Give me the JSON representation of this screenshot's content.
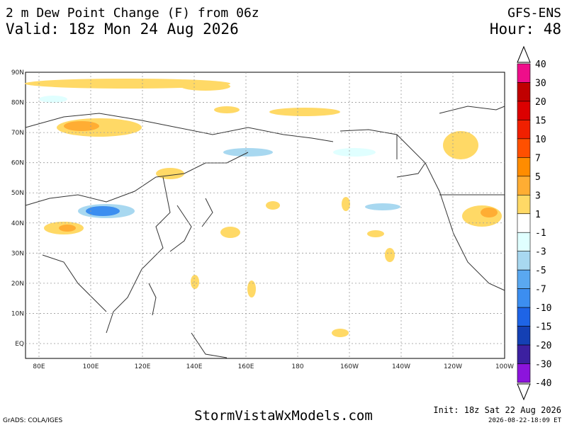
{
  "header": {
    "title": "2 m Dew Point Change (F) from 06z",
    "valid": "Valid: 18z Mon 24 Aug 2026",
    "model": "GFS-ENS",
    "hour": "Hour: 48"
  },
  "map": {
    "lat_labels": [
      "90N",
      "80N",
      "70N",
      "60N",
      "50N",
      "40N",
      "30N",
      "20N",
      "10N",
      "EQ"
    ],
    "lon_labels": [
      "80E",
      "100E",
      "120E",
      "140E",
      "160E",
      "180",
      "160W",
      "140W",
      "120W",
      "100W"
    ]
  },
  "colorbar": {
    "labels": [
      "40",
      "30",
      "20",
      "15",
      "10",
      "7",
      "5",
      "3",
      "1",
      "-1",
      "-3",
      "-5",
      "-7",
      "-10",
      "-15",
      "-20",
      "-30",
      "-40"
    ],
    "colors": [
      "#ee0e8a",
      "#c00000",
      "#dc0000",
      "#f02000",
      "#ff5000",
      "#ff8c00",
      "#ffad33",
      "#ffd966",
      "#ffffff",
      "#e0ffff",
      "#a8d8f0",
      "#5aa8f0",
      "#3c8ef0",
      "#1e64e6",
      "#1440b4",
      "#3c20a0",
      "#8c14dc"
    ]
  },
  "footer": {
    "credit": "GrADS: COLA/IGES",
    "site": "StormVistaWxModels.com",
    "init": "Init: 18z Sat 22 Aug 2026",
    "stamp": "2026-08-22-18:09 ET"
  }
}
